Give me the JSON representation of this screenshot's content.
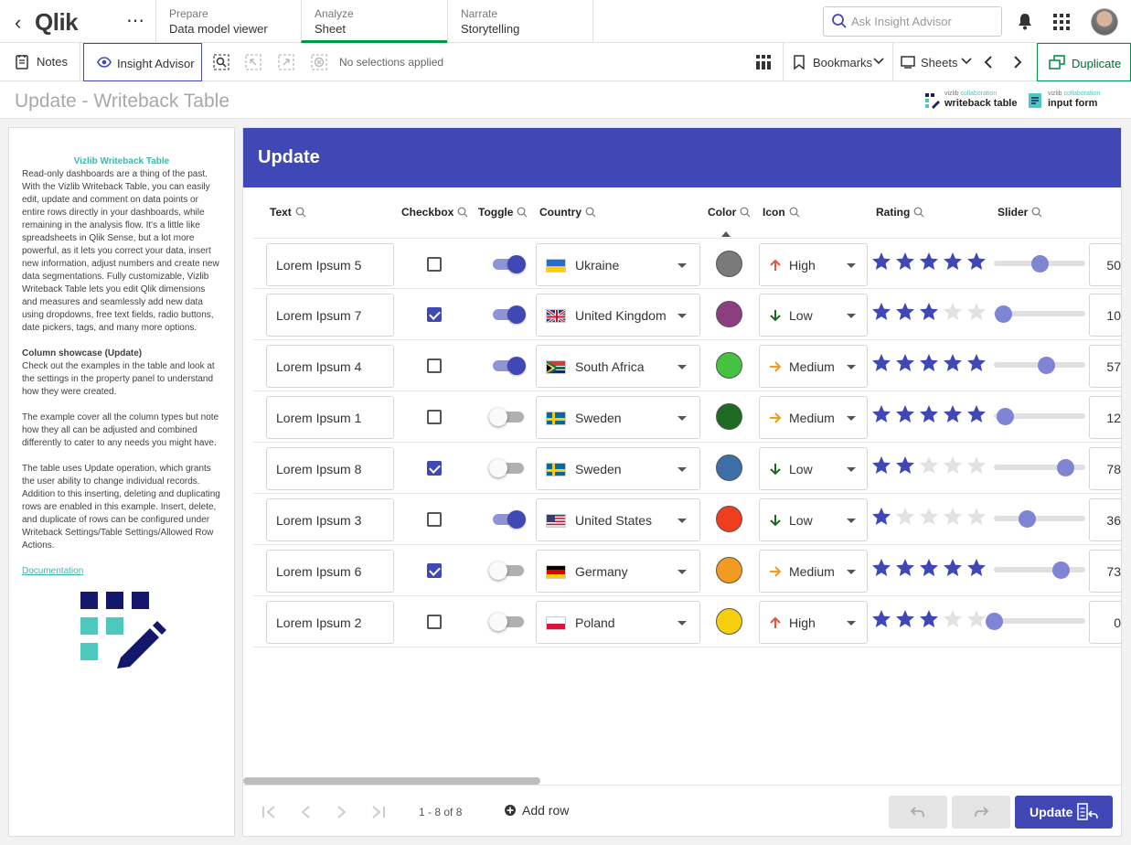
{
  "app": {
    "name": "Qlik",
    "more_label": "⋯"
  },
  "nav": {
    "tabs": [
      {
        "caption": "Prepare",
        "label": "Data model viewer"
      },
      {
        "caption": "Analyze",
        "label": "Sheet"
      },
      {
        "caption": "Narrate",
        "label": "Storytelling"
      }
    ],
    "search_placeholder": "Ask Insight Advisor"
  },
  "toolbar": {
    "notes": "Notes",
    "insight_advisor": "Insight Advisor",
    "selections": "No selections applied",
    "bookmarks": "Bookmarks",
    "sheets": "Sheets",
    "duplicate": "Duplicate"
  },
  "sheet": {
    "title": "Update - Writeback Table",
    "logos": [
      {
        "small_prefix": "vizlib",
        "small_suffix": "collaboration",
        "big": "writeback table"
      },
      {
        "small_prefix": "vizlib",
        "small_suffix": "collaboration",
        "big": "input form"
      }
    ]
  },
  "textpanel": {
    "heading": "Vizlib Writeback Table",
    "intro": "Read-only dashboards are a thing of the past. With the Vizlib Writeback Table, you can easily edit, update and comment on data points or entire rows directly in your dashboards, while remaining in the analysis flow. It's a little like spreadsheets in Qlik Sense, but a lot more powerful, as it lets you correct your data, insert new information, adjust numbers and create new data segmentations. Fully customizable, Vizlib Writeback Table lets you edit Qlik dimensions and measures and seamlessly add new data using dropdowns, free text fields, radio buttons, date pickers, tags, and many more options.",
    "subheading": "Column showcase (Update)",
    "p1": "Check out the examples in the table and look at the settings in the property panel to understand how they were created.",
    "p2": "The example cover all the column types but note how they all can be adjusted and combined differently to cater to any needs you might have.",
    "p3": "The table uses Update operation, which grants the user ability to change individual records. Addition to this inserting, deleting and duplicating rows are enabled in this example. Insert, delete, and duplicate of rows can be configured under Writeback Settings/Table Settings/Allowed Row Actions.",
    "link": "Documentation"
  },
  "table": {
    "title": "Update",
    "columns": [
      "Text",
      "Checkbox",
      "Toggle",
      "Country",
      "Color",
      "Icon",
      "Rating",
      "Slider"
    ],
    "rows": [
      {
        "text": "Lorem Ipsum 5",
        "checked": false,
        "toggle": true,
        "country": "Ukraine",
        "flag": "ukraine",
        "color": "#7a7a7a",
        "level": "High",
        "rating": 5,
        "slider": 50,
        "num": "50"
      },
      {
        "text": "Lorem Ipsum 7",
        "checked": true,
        "toggle": true,
        "country": "United Kingdom",
        "flag": "uk",
        "color": "#8b3f7e",
        "level": "Low",
        "rating": 3,
        "slider": 10,
        "num": "10"
      },
      {
        "text": "Lorem Ipsum 4",
        "checked": false,
        "toggle": true,
        "country": "South Africa",
        "flag": "sa",
        "color": "#45c23f",
        "level": "Medium",
        "rating": 5,
        "slider": 57,
        "num": "57"
      },
      {
        "text": "Lorem Ipsum 1",
        "checked": false,
        "toggle": false,
        "country": "Sweden",
        "flag": "sweden",
        "color": "#1e6a25",
        "level": "Medium",
        "rating": 5,
        "slider": 12,
        "num": "12"
      },
      {
        "text": "Lorem Ipsum 8",
        "checked": true,
        "toggle": false,
        "country": "Sweden",
        "flag": "sweden",
        "color": "#3d6fa8",
        "level": "Low",
        "rating": 2,
        "slider": 78,
        "num": "78"
      },
      {
        "text": "Lorem Ipsum 3",
        "checked": false,
        "toggle": true,
        "country": "United States",
        "flag": "us",
        "color": "#ee3e1f",
        "level": "Low",
        "rating": 1,
        "slider": 36,
        "num": "36"
      },
      {
        "text": "Lorem Ipsum 6",
        "checked": true,
        "toggle": false,
        "country": "Germany",
        "flag": "germany",
        "color": "#f39a22",
        "level": "Medium",
        "rating": 5,
        "slider": 73,
        "num": "73"
      },
      {
        "text": "Lorem Ipsum 2",
        "checked": false,
        "toggle": false,
        "country": "Poland",
        "flag": "poland",
        "color": "#f6cf11",
        "level": "High",
        "rating": 3,
        "slider": 0,
        "num": "0"
      }
    ],
    "pagination": "1 - 8 of 8",
    "add_row": "Add row",
    "update": "Update"
  },
  "colors": {
    "accent": "#3f48b5",
    "qlik_green": "#009845",
    "teal": "#3fb6a8",
    "star_on": "#3f48b5",
    "star_off": "#e2e2e2",
    "high": "#e5533c",
    "low": "#1e6a25",
    "medium": "#f39a22"
  }
}
